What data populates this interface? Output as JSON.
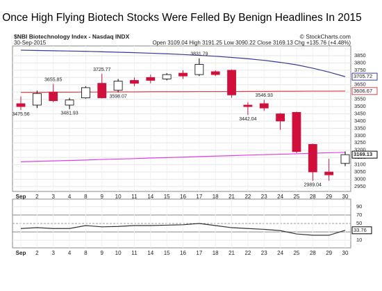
{
  "chart_data": {
    "type": "candlestick",
    "title": "Once High Flying Biotech Stocks Were Felled By Benign Headlines In 2015",
    "symbol_line": "$NBI Biotechnology Index - Nasdaq INDX",
    "source": "© StockCharts.com",
    "date": "30-Sep-2015",
    "ohlc_line": "Open 3109.04 High 3191.25 Low 3090.22 Close 3169.13 Chg +135.76 (+4.48%)",
    "categories": [
      "Sep",
      "2",
      "3",
      "4",
      "8",
      "9",
      "10",
      "11",
      "14",
      "15",
      "16",
      "17",
      "18",
      "21",
      "22",
      "23",
      "24",
      "25",
      "28",
      "29",
      "30"
    ],
    "open": [
      3520,
      3510,
      3600,
      3510,
      3560,
      3660,
      3612,
      3680,
      3700,
      3690,
      3730,
      3720,
      3740,
      3750,
      3510,
      3520,
      3450,
      3460,
      3240,
      3050,
      3109.04
    ],
    "high": [
      3570,
      3610,
      3655.85,
      3560,
      3640,
      3725.77,
      3690,
      3700,
      3720,
      3730,
      3750,
      3831.79,
      3750,
      3755,
      3530,
      3546.93,
      3455,
      3465,
      3245,
      3140,
      3191.25
    ],
    "low": [
      3475.56,
      3490,
      3530,
      3481.93,
      3555,
      3555,
      3598.07,
      3640,
      3660,
      3680,
      3690,
      3710,
      3710,
      3560,
      3442.04,
      3470,
      3340,
      3180,
      2989.04,
      2990,
      3090.22
    ],
    "close": [
      3500,
      3590,
      3540,
      3545,
      3630,
      3560,
      3675,
      3660,
      3680,
      3720,
      3710,
      3790,
      3720,
      3580,
      3500,
      3490,
      3400,
      3190,
      3050,
      3030,
      3169.13
    ],
    "high_value_labels": [
      null,
      null,
      "3655.85",
      null,
      null,
      "3725.77",
      null,
      null,
      null,
      null,
      null,
      "3831.79",
      null,
      null,
      null,
      "3546.93",
      null,
      null,
      null,
      null,
      null
    ],
    "low_value_labels": [
      "3475.56",
      null,
      null,
      "3481.93",
      null,
      null,
      "3598.07",
      null,
      null,
      null,
      null,
      null,
      null,
      null,
      "3442.04",
      null,
      null,
      null,
      "2989.04",
      null,
      null
    ],
    "up_color": "#ffffff",
    "down_color": "#d0103a",
    "overlays": [
      {
        "color": "#3a3a96",
        "values": [
          3888,
          3886,
          3884,
          3882,
          3880,
          3877,
          3874,
          3871,
          3867,
          3863,
          3858,
          3852,
          3846,
          3838,
          3829,
          3818,
          3804,
          3787,
          3764,
          3737,
          3705.72
        ]
      },
      {
        "color": "#e0404a",
        "values": [
          3598,
          3598,
          3599,
          3599,
          3600,
          3600,
          3601,
          3601,
          3602,
          3602,
          3602,
          3603,
          3603,
          3603,
          3604,
          3604,
          3605,
          3605,
          3606,
          3606,
          3606.67
        ]
      },
      {
        "color": "#e040e0",
        "values": [
          3120,
          3123,
          3126,
          3129,
          3132,
          3136,
          3139,
          3142,
          3146,
          3149,
          3152,
          3156,
          3159,
          3162,
          3166,
          3169,
          3172,
          3175,
          3179,
          3182,
          3185
        ]
      }
    ],
    "ylim": [
      2916,
      3917
    ],
    "yticks": [
      2950,
      3000,
      3050,
      3100,
      3150,
      3200,
      3250,
      3300,
      3350,
      3400,
      3450,
      3500,
      3550,
      3600,
      3650,
      3700,
      3750,
      3800,
      3850
    ],
    "rsi": {
      "color": "#333333",
      "values": [
        38,
        40,
        38,
        38,
        45,
        42,
        43,
        45,
        45,
        46,
        47,
        50,
        45,
        40,
        38,
        36,
        33,
        25,
        22,
        22,
        33.76
      ],
      "ylim": [
        -8,
        108
      ],
      "yticks": [
        10,
        30,
        50,
        70,
        90
      ]
    }
  }
}
